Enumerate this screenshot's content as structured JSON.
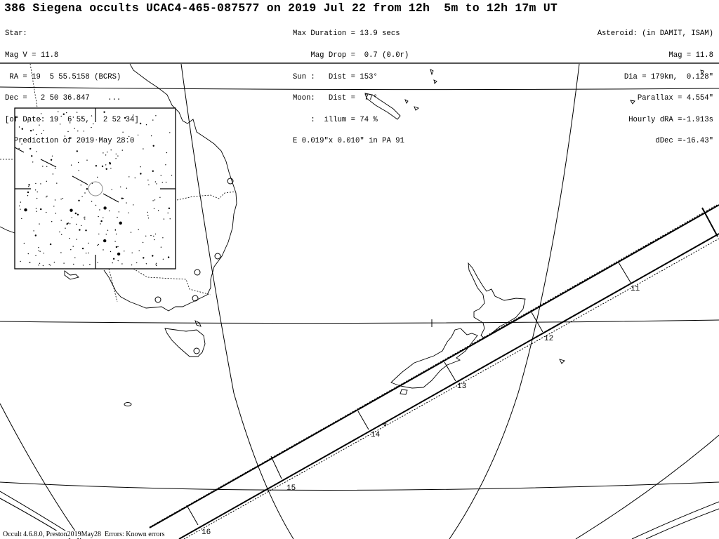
{
  "header": {
    "title": "386 Siegena occults UCAC4-465-087577 on 2019 Jul 22 from 12h  5m to 12h 17m UT",
    "star": [
      "Star:",
      "Mag V = 11.8",
      " RA = 19  5 55.5158 (BCRS)",
      "Dec =   2 50 36.847    ...",
      "[of Date: 19  6 55,   2 52 34]",
      "  Prediction of 2019 May 28.0"
    ],
    "event": [
      "Max Duration = 13.9 secs",
      "    Mag Drop =  0.7 (0.0r)",
      "Sun :   Dist = 153°",
      "Moon:   Dist =  77°",
      "    :  illum = 74 %",
      "E 0.019\"x 0.010\" in PA 91"
    ],
    "asteroid": [
      "Asteroid: (in DAMIT, ISAM)",
      "Mag = 11.8",
      "Dia = 179km,  0.128\"",
      "Parallax = 4.554\"",
      "Hourly dRA =-1.913s",
      "dDec =-16.43\""
    ]
  },
  "map": {
    "time_labels": [
      "11",
      "12",
      "13",
      "14",
      "15",
      "16"
    ],
    "path_color": "#000000",
    "time_label_color": "#000000"
  },
  "footer": "Occult 4.6.8.0, Preston2019May28  Errors: Known errors"
}
